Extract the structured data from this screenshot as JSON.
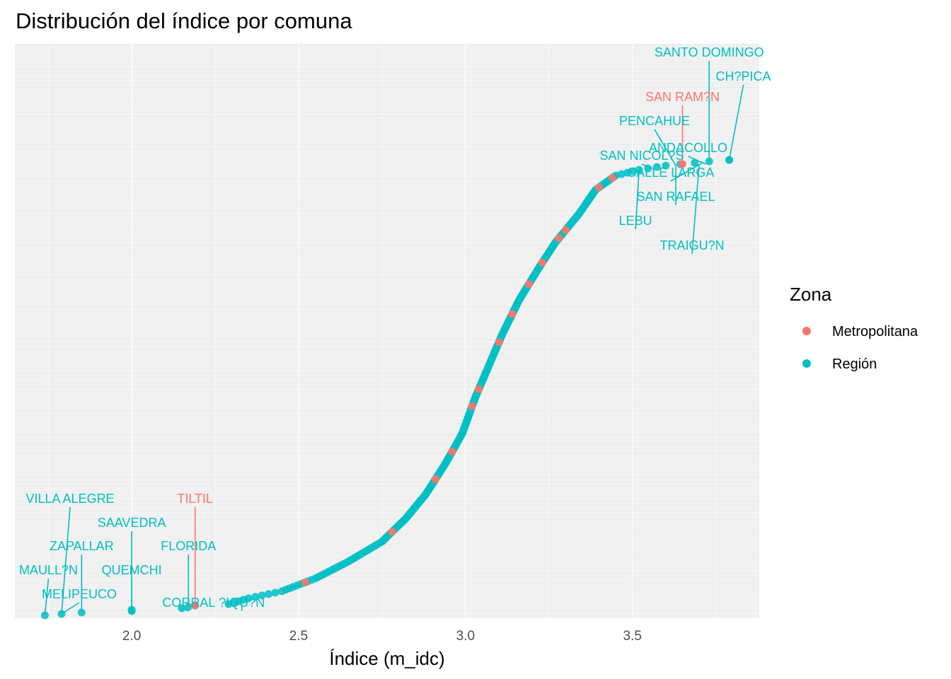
{
  "colors": {
    "Metropolitana": "#F8766D",
    "Región": "#00BFC4",
    "panel": "#EBEBEB",
    "grid": "#FFFFFF"
  },
  "chart_data": {
    "type": "scatter",
    "title": "Distribución del índice por comuna",
    "xlabel": "Índice (m_idc)",
    "ylabel": "",
    "xlim": [
      1.65,
      3.88
    ],
    "x_ticks": [
      2.0,
      2.5,
      3.0,
      3.5
    ],
    "x_tick_labels": [
      "2.0",
      "2.5",
      "3.0",
      "3.5"
    ],
    "y_range": [
      0,
      345
    ],
    "grid": true,
    "legend": {
      "title": "Zona",
      "placement": "right",
      "entries": [
        "Metropolitana",
        "Región"
      ]
    },
    "labeled_points": [
      {
        "name": "SANTO DOMINGO",
        "zona": "Región",
        "x": 3.73,
        "rank": 320
      },
      {
        "name": "CH?PICA",
        "zona": "Región",
        "x": 3.79,
        "rank": 321
      },
      {
        "name": "SAN RAM?N",
        "zona": "Metropolitana",
        "x": 3.65,
        "rank": 316
      },
      {
        "name": "PENCAHUE",
        "zona": "Región",
        "x": 3.63,
        "rank": 317
      },
      {
        "name": "ANDACOLLO",
        "zona": "Región",
        "x": 3.72,
        "rank": 318
      },
      {
        "name": "SAN NICOL?S",
        "zona": "Región",
        "x": 3.56,
        "rank": 315
      },
      {
        "name": "CALLE LARGA",
        "zona": "Región",
        "x": 3.71,
        "rank": 319
      },
      {
        "name": "SAN RAFAEL",
        "zona": "Región",
        "x": 3.63,
        "rank": 317
      },
      {
        "name": "LEBU",
        "zona": "Región",
        "x": 3.52,
        "rank": 314
      },
      {
        "name": "TRAIGU?N",
        "zona": "Región",
        "x": 3.7,
        "rank": 318
      },
      {
        "name": "VILLA ALEGRE",
        "zona": "Región",
        "x": 1.79,
        "rank": 1
      },
      {
        "name": "TILTIL",
        "zona": "Metropolitana",
        "x": 2.19,
        "rank": 7
      },
      {
        "name": "SAAVEDRA",
        "zona": "Región",
        "x": 2.0,
        "rank": 4
      },
      {
        "name": "ZAPALLAR",
        "zona": "Región",
        "x": 1.85,
        "rank": 2
      },
      {
        "name": "FLORIDA",
        "zona": "Región",
        "x": 2.17,
        "rank": 6
      },
      {
        "name": "MAULL?N",
        "zona": "Región",
        "x": 1.74,
        "rank": 0
      },
      {
        "name": "QUEMCHI",
        "zona": "Región",
        "x": 2.0,
        "rank": 3
      },
      {
        "name": "MELIPEUCO",
        "zona": "Región",
        "x": 1.79,
        "rank": 1
      },
      {
        "name": "CORRAL",
        "zona": "Región",
        "x": 2.15,
        "rank": 5
      },
      {
        "name": "?IQU?N",
        "zona": "Región",
        "x": 2.33,
        "rank": 8
      }
    ],
    "curve_points": [
      {
        "x": 1.74,
        "rank": 0
      },
      {
        "x": 1.79,
        "rank": 1
      },
      {
        "x": 1.85,
        "rank": 2
      },
      {
        "x": 2.0,
        "rank": 3
      },
      {
        "x": 2.0,
        "rank": 4
      },
      {
        "x": 2.15,
        "rank": 5
      },
      {
        "x": 2.17,
        "rank": 6
      },
      {
        "x": 2.19,
        "rank": 7
      },
      {
        "x": 2.29,
        "rank": 8
      },
      {
        "x": 2.35,
        "rank": 12
      },
      {
        "x": 2.45,
        "rank": 17
      },
      {
        "x": 2.55,
        "rank": 26
      },
      {
        "x": 2.65,
        "rank": 38
      },
      {
        "x": 2.75,
        "rank": 52
      },
      {
        "x": 2.82,
        "rank": 68
      },
      {
        "x": 2.88,
        "rank": 85
      },
      {
        "x": 2.94,
        "rank": 107
      },
      {
        "x": 2.99,
        "rank": 128
      },
      {
        "x": 3.03,
        "rank": 154
      },
      {
        "x": 3.07,
        "rank": 176
      },
      {
        "x": 3.11,
        "rank": 198
      },
      {
        "x": 3.16,
        "rank": 222
      },
      {
        "x": 3.22,
        "rank": 245
      },
      {
        "x": 3.27,
        "rank": 263
      },
      {
        "x": 3.34,
        "rank": 283
      },
      {
        "x": 3.39,
        "rank": 300
      },
      {
        "x": 3.45,
        "rank": 310
      },
      {
        "x": 3.52,
        "rank": 314
      },
      {
        "x": 3.6,
        "rank": 317
      },
      {
        "x": 3.73,
        "rank": 320
      },
      {
        "x": 3.79,
        "rank": 321
      }
    ],
    "metropolitana_points_x": [
      2.19,
      2.52,
      2.78,
      2.91,
      2.96,
      3.02,
      3.04,
      3.1,
      3.14,
      3.19,
      3.23,
      3.28,
      3.3,
      3.4,
      3.44,
      3.65
    ]
  }
}
